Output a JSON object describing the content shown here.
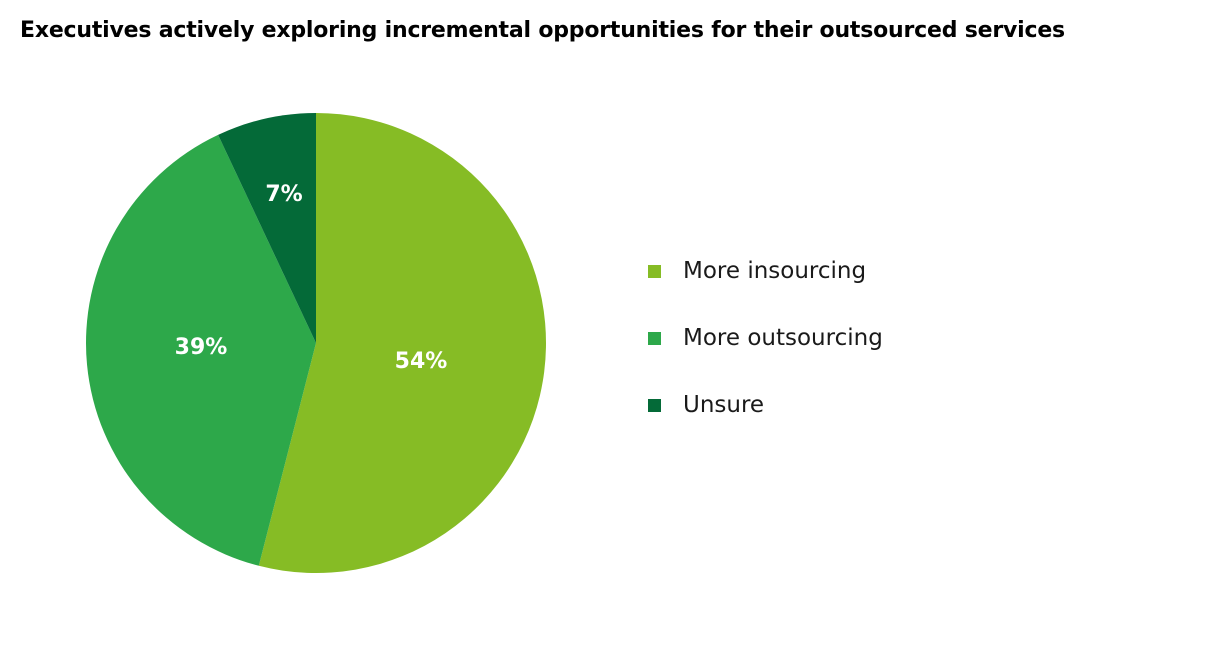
{
  "title": "Executives actively exploring incremental opportunities for their outsourced services",
  "chart_data": {
    "type": "pie",
    "title": "Executives actively exploring incremental opportunities for their outsourced services",
    "categories": [
      "More insourcing",
      "More outsourcing",
      "Unsure"
    ],
    "values": [
      54,
      39,
      7
    ],
    "labels": [
      "54%",
      "39%",
      "7%"
    ],
    "colors": [
      "#86bc25",
      "#2da84a",
      "#046a38"
    ],
    "legend_position": "right"
  },
  "legend": {
    "items": [
      {
        "label": "More insourcing",
        "color": "#86bc25"
      },
      {
        "label": "More outsourcing",
        "color": "#2da84a"
      },
      {
        "label": "Unsure",
        "color": "#046a38"
      }
    ]
  }
}
